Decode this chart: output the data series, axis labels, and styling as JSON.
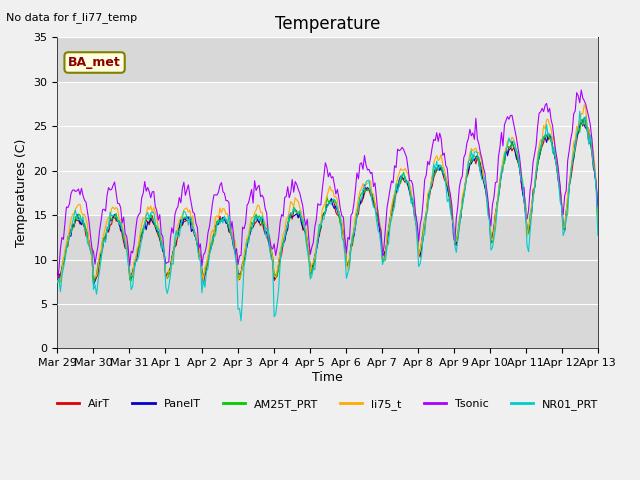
{
  "title": "Temperature",
  "ylabel": "Temperatures (C)",
  "xlabel": "Time",
  "top_left_text": "No data for f_li77_temp",
  "legend_label_text": "BA_met",
  "ylim": [
    0,
    35
  ],
  "yticks": [
    0,
    5,
    10,
    15,
    20,
    25,
    30,
    35
  ],
  "xtick_labels": [
    "Mar 29",
    "Mar 30",
    "Mar 31",
    "Apr 1",
    "Apr 2",
    "Apr 3",
    "Apr 4",
    "Apr 5",
    "Apr 6",
    "Apr 7",
    "Apr 8",
    "Apr 9",
    "Apr 10",
    "Apr 11",
    "Apr 12",
    "Apr 13"
  ],
  "series_colors": {
    "AirT": "#dd0000",
    "PanelT": "#0000cc",
    "AM25T_PRT": "#00cc00",
    "li75_t": "#ffaa00",
    "Tsonic": "#aa00ff",
    "NR01_PRT": "#00cccc"
  },
  "plot_bg": "#d8d8d8",
  "fig_bg": "#f0f0f0",
  "shaded_region": [
    15,
    30
  ],
  "shaded_color": "#e8e8e8",
  "figsize": [
    6.4,
    4.8
  ],
  "dpi": 100
}
